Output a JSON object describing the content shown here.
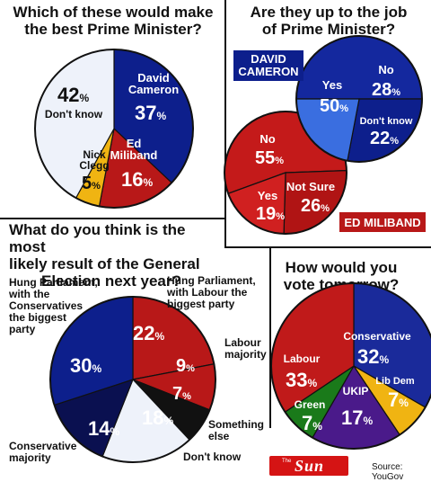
{
  "panels": {
    "best_pm_title": [
      "Which of these would make",
      "the best Prime Minister?"
    ],
    "job_title": [
      "Are they up to the job",
      "of Prime Minister?"
    ],
    "election_title": [
      "What do you think is the most",
      "likely result of the General",
      "Election next year?"
    ],
    "vote_title": [
      "How would you",
      "vote tomorrow?"
    ]
  },
  "source": "Source: YouGov",
  "logo_text": "Sun",
  "logo_small": "The",
  "colors": {
    "blue": "#0d1f8c",
    "red": "#b81818",
    "light": "#eef2fa",
    "yellow": "#f0b412",
    "green": "#1a7a1a",
    "purple": "#4a1a8a",
    "black": "#111111",
    "navy": "#0a1050",
    "lightblue": "#3a6ee0"
  },
  "chart_data": [
    {
      "type": "pie",
      "title": "Which of these would make the best Prime Minister?",
      "slices": [
        {
          "name": "David Cameron",
          "value": 37
        },
        {
          "name": "Ed Miliband",
          "value": 16
        },
        {
          "name": "Nick Clegg",
          "value": 5
        },
        {
          "name": "Don't know",
          "value": 42
        }
      ]
    },
    {
      "type": "pie",
      "title": "Are they up to the job of Prime Minister?",
      "series": [
        {
          "name": "DAVID CAMERON",
          "slices": [
            {
              "name": "Yes",
              "value": 50
            },
            {
              "name": "No",
              "value": 28
            },
            {
              "name": "Don't know",
              "value": 22
            }
          ]
        },
        {
          "name": "ED MILIBAND",
          "slices": [
            {
              "name": "No",
              "value": 55
            },
            {
              "name": "Not Sure",
              "value": 26
            },
            {
              "name": "Yes",
              "value": 19
            }
          ]
        }
      ]
    },
    {
      "type": "pie",
      "title": "What do you think is the most likely result of the General Election next year?",
      "slices": [
        {
          "name": "Hung Parliament, with Labour the biggest party",
          "value": 22
        },
        {
          "name": "Labour majority",
          "value": 9
        },
        {
          "name": "Something else",
          "value": 7
        },
        {
          "name": "Don't know",
          "value": 18
        },
        {
          "name": "Conservative majority",
          "value": 14
        },
        {
          "name": "Hung Parliament, with the Conservatives the biggest party",
          "value": 30
        }
      ]
    },
    {
      "type": "pie",
      "title": "How would you vote tomorrow?",
      "slices": [
        {
          "name": "Conservative",
          "value": 32
        },
        {
          "name": "Lib Dem",
          "value": 7
        },
        {
          "name": "UKIP",
          "value": 17
        },
        {
          "name": "Green",
          "value": 7
        },
        {
          "name": "Labour",
          "value": 33
        }
      ]
    }
  ]
}
